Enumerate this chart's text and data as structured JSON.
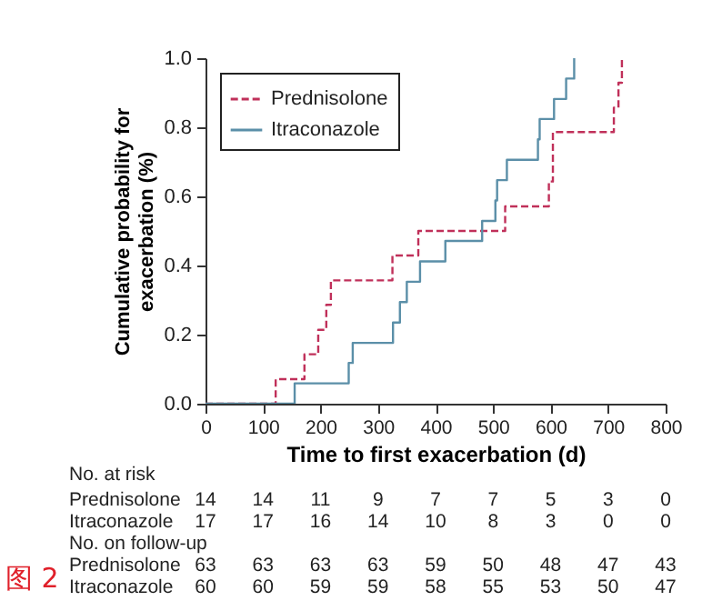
{
  "chart_data": {
    "type": "step",
    "xlabel": "Time to first exacerbation (d)",
    "ylabel": "Cumulative probability for\nexacerbation (%)",
    "xlim": [
      0,
      800
    ],
    "xticks": [
      0,
      100,
      200,
      300,
      400,
      500,
      600,
      700,
      800
    ],
    "ylim": [
      0,
      1
    ],
    "yticks": [
      {
        "value": 0,
        "label": "0.0"
      },
      {
        "value": 0.2,
        "label": "0.2"
      },
      {
        "value": 0.4,
        "label": "0.4"
      },
      {
        "value": 0.6,
        "label": "0.6"
      },
      {
        "value": 0.8,
        "label": "0.8"
      },
      {
        "value": 1,
        "label": "1.0"
      }
    ],
    "grid": false,
    "legend": "top left",
    "series": [
      {
        "name": "Prednisolone",
        "color": "#c0305a",
        "line_style": "dashed",
        "x": [
          0,
          122,
          172,
          196,
          210,
          218,
          325,
          370,
          521,
          597,
          604,
          710,
          718,
          724
        ],
        "values": [
          0,
          0.071,
          0.143,
          0.214,
          0.286,
          0.357,
          0.429,
          0.5,
          0.571,
          0.643,
          0.786,
          0.857,
          0.929,
          1.0
        ]
      },
      {
        "name": "Itraconazole",
        "color": "#5b8fa8",
        "line_style": "solid",
        "x": [
          0,
          155,
          249,
          256,
          326,
          338,
          350,
          373,
          417,
          481,
          504,
          507,
          524,
          578,
          581,
          606,
          627,
          641
        ],
        "values": [
          0,
          0.059,
          0.118,
          0.176,
          0.235,
          0.294,
          0.353,
          0.412,
          0.471,
          0.529,
          0.588,
          0.647,
          0.706,
          0.765,
          0.824,
          0.882,
          0.941,
          1.0
        ]
      }
    ],
    "annotations": [
      "No. at risk",
      "Prednisolone 14 14 11 9 7 7 5 3 0",
      "Itraconazole 17 17 16 14 10 8 3 0 0",
      "No. on follow-up",
      "Prednisolone 63 63 63 63 59 50 48 47 43",
      "Itraconazole 60 60 59 59 58 55 53 50 47",
      "图 2"
    ]
  }
}
